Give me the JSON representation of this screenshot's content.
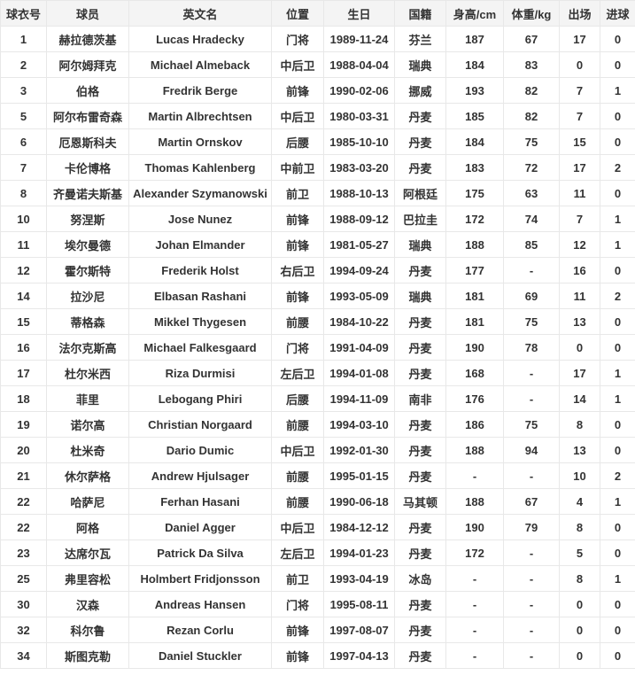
{
  "table": {
    "columns": [
      {
        "key": "number",
        "label": "球衣号"
      },
      {
        "key": "name_cn",
        "label": "球员"
      },
      {
        "key": "name_en",
        "label": "英文名"
      },
      {
        "key": "position",
        "label": "位置"
      },
      {
        "key": "birthday",
        "label": "生日"
      },
      {
        "key": "nationality",
        "label": "国籍"
      },
      {
        "key": "height",
        "label": "身高/cm"
      },
      {
        "key": "weight",
        "label": "体重/kg"
      },
      {
        "key": "appearances",
        "label": "出场"
      },
      {
        "key": "goals",
        "label": "进球"
      }
    ],
    "rows": [
      [
        "1",
        "赫拉德茨基",
        "Lucas Hradecky",
        "门将",
        "1989-11-24",
        "芬兰",
        "187",
        "67",
        "17",
        "0"
      ],
      [
        "2",
        "阿尔姆拜克",
        "Michael Almeback",
        "中后卫",
        "1988-04-04",
        "瑞典",
        "184",
        "83",
        "0",
        "0"
      ],
      [
        "3",
        "伯格",
        "Fredrik Berge",
        "前锋",
        "1990-02-06",
        "挪威",
        "193",
        "82",
        "7",
        "1"
      ],
      [
        "5",
        "阿尔布雷奇森",
        "Martin Albrechtsen",
        "中后卫",
        "1980-03-31",
        "丹麦",
        "185",
        "82",
        "7",
        "0"
      ],
      [
        "6",
        "厄恩斯科夫",
        "Martin Ornskov",
        "后腰",
        "1985-10-10",
        "丹麦",
        "184",
        "75",
        "15",
        "0"
      ],
      [
        "7",
        "卡伦博格",
        "Thomas Kahlenberg",
        "中前卫",
        "1983-03-20",
        "丹麦",
        "183",
        "72",
        "17",
        "2"
      ],
      [
        "8",
        "齐曼诺夫斯基",
        "Alexander Szymanowski",
        "前卫",
        "1988-10-13",
        "阿根廷",
        "175",
        "63",
        "11",
        "0"
      ],
      [
        "10",
        "努涅斯",
        "Jose Nunez",
        "前锋",
        "1988-09-12",
        "巴拉圭",
        "172",
        "74",
        "7",
        "1"
      ],
      [
        "11",
        "埃尔曼德",
        "Johan Elmander",
        "前锋",
        "1981-05-27",
        "瑞典",
        "188",
        "85",
        "12",
        "1"
      ],
      [
        "12",
        "霍尔斯特",
        "Frederik Holst",
        "右后卫",
        "1994-09-24",
        "丹麦",
        "177",
        "-",
        "16",
        "0"
      ],
      [
        "14",
        "拉沙尼",
        "Elbasan Rashani",
        "前锋",
        "1993-05-09",
        "瑞典",
        "181",
        "69",
        "11",
        "2"
      ],
      [
        "15",
        "蒂格森",
        "Mikkel Thygesen",
        "前腰",
        "1984-10-22",
        "丹麦",
        "181",
        "75",
        "13",
        "0"
      ],
      [
        "16",
        "法尔克斯高",
        "Michael Falkesgaard",
        "门将",
        "1991-04-09",
        "丹麦",
        "190",
        "78",
        "0",
        "0"
      ],
      [
        "17",
        "杜尔米西",
        "Riza Durmisi",
        "左后卫",
        "1994-01-08",
        "丹麦",
        "168",
        "-",
        "17",
        "1"
      ],
      [
        "18",
        "菲里",
        "Lebogang Phiri",
        "后腰",
        "1994-11-09",
        "南非",
        "176",
        "-",
        "14",
        "1"
      ],
      [
        "19",
        "诺尔高",
        "Christian Norgaard",
        "前腰",
        "1994-03-10",
        "丹麦",
        "186",
        "75",
        "8",
        "0"
      ],
      [
        "20",
        "杜米奇",
        "Dario Dumic",
        "中后卫",
        "1992-01-30",
        "丹麦",
        "188",
        "94",
        "13",
        "0"
      ],
      [
        "21",
        "休尔萨格",
        "Andrew Hjulsager",
        "前腰",
        "1995-01-15",
        "丹麦",
        "-",
        "-",
        "10",
        "2"
      ],
      [
        "22",
        "哈萨尼",
        "Ferhan Hasani",
        "前腰",
        "1990-06-18",
        "马其顿",
        "188",
        "67",
        "4",
        "1"
      ],
      [
        "22",
        "阿格",
        "Daniel Agger",
        "中后卫",
        "1984-12-12",
        "丹麦",
        "190",
        "79",
        "8",
        "0"
      ],
      [
        "23",
        "达席尔瓦",
        "Patrick Da Silva",
        "左后卫",
        "1994-01-23",
        "丹麦",
        "172",
        "-",
        "5",
        "0"
      ],
      [
        "25",
        "弗里容松",
        "Holmbert Fridjonsson",
        "前卫",
        "1993-04-19",
        "冰岛",
        "-",
        "-",
        "8",
        "1"
      ],
      [
        "30",
        "汉森",
        "Andreas Hansen",
        "门将",
        "1995-08-11",
        "丹麦",
        "-",
        "-",
        "0",
        "0"
      ],
      [
        "32",
        "科尔鲁",
        "Rezan Corlu",
        "前锋",
        "1997-08-07",
        "丹麦",
        "-",
        "-",
        "0",
        "0"
      ],
      [
        "34",
        "斯图克勒",
        "Daniel Stuckler",
        "前锋",
        "1997-04-13",
        "丹麦",
        "-",
        "-",
        "0",
        "0"
      ]
    ]
  },
  "colors": {
    "header_background": "#f4f4f4",
    "row_background": "#ffffff",
    "border": "#e8e8e8",
    "text": "#333333"
  }
}
